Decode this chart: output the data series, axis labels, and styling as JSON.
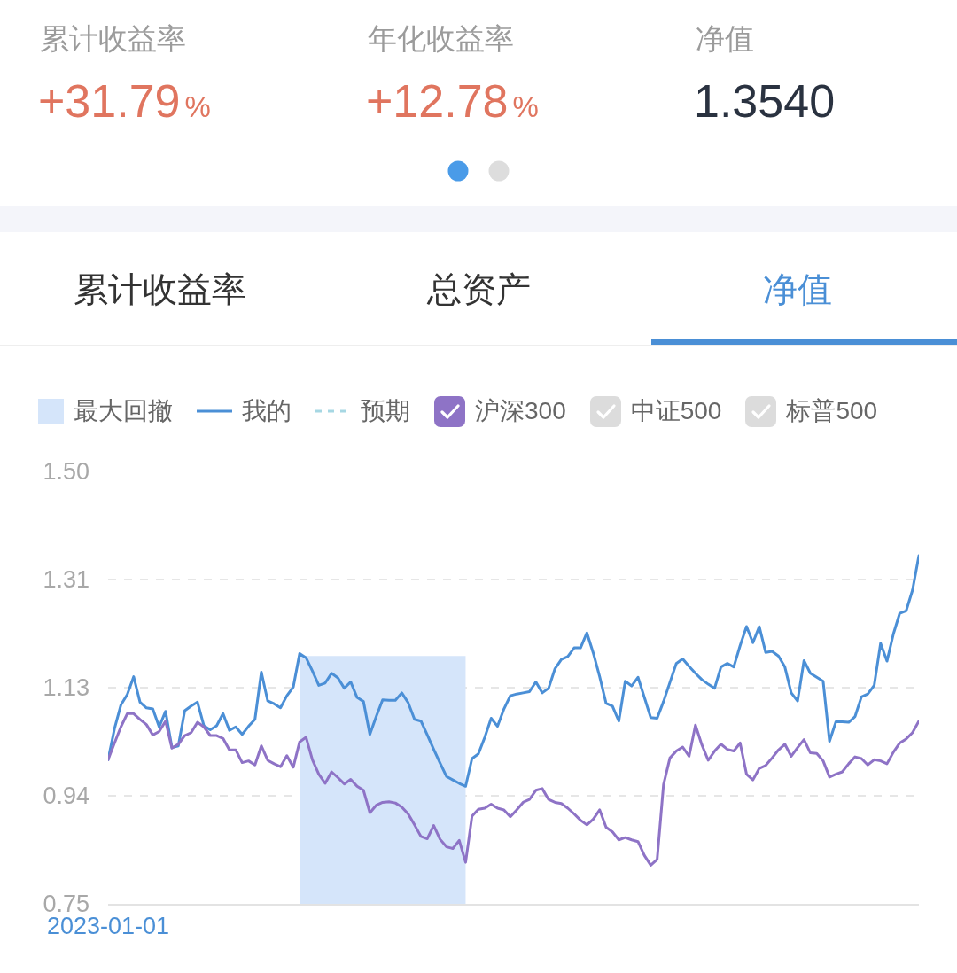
{
  "chart_data": [
    {
      "type": "other",
      "categories": [
        "累计收益率",
        "年化收益率",
        "净值"
      ],
      "value_labels": [
        "+31.79%",
        "+12.78%",
        "1.3540"
      ],
      "colors": [
        "#e0755f",
        "#e0755f",
        "#2a3240"
      ]
    },
    {
      "type": "line",
      "title": "净值",
      "annotations": [
        "累计收益率",
        "总资产"
      ],
      "categories": [
        "2023-01-01",
        null,
        null,
        null,
        null,
        null,
        null,
        null,
        null,
        null,
        null,
        null,
        null,
        null,
        null,
        null,
        null,
        null,
        null,
        null,
        null,
        null,
        null,
        null,
        null,
        null,
        null,
        null,
        null,
        null,
        null,
        null,
        null,
        null,
        null,
        null,
        null,
        null,
        null,
        null,
        null,
        null,
        null,
        null,
        null,
        null,
        null,
        null,
        null,
        null,
        null,
        null,
        null,
        null,
        null,
        null,
        null,
        null,
        null,
        null,
        null,
        null,
        null,
        null,
        null,
        null,
        null,
        null,
        null,
        null,
        null,
        null,
        null,
        null,
        null,
        null,
        null,
        null,
        null,
        null,
        null,
        null,
        null,
        null,
        null,
        null,
        null,
        null,
        null,
        null,
        null,
        null,
        null,
        null,
        null,
        null,
        null,
        null,
        null,
        null,
        null,
        null,
        null,
        null,
        null,
        null,
        null,
        null,
        null,
        null,
        null,
        null,
        null,
        null,
        null,
        null,
        null,
        null,
        null,
        null,
        null,
        null,
        null,
        null,
        null,
        null,
        null,
        null
      ],
      "series": [
        {
          "name": "最大回撤",
          "type": "area",
          "color": "#d5e5fa",
          "values": [
            null,
            null,
            null,
            null,
            null,
            null,
            null,
            null,
            null,
            null,
            null,
            null,
            null,
            null,
            null,
            null,
            null,
            null,
            null,
            null,
            null,
            null,
            null,
            null,
            null,
            null,
            null,
            null,
            null,
            null,
            1.18,
            1.18,
            1.18,
            1.18,
            1.18,
            1.18,
            1.18,
            1.18,
            1.18,
            1.18,
            1.18,
            1.18,
            1.18,
            1.18,
            1.18,
            1.18,
            1.18,
            1.18,
            1.18,
            1.18,
            1.18,
            1.18,
            1.18,
            1.18,
            1.18,
            1.18,
            1.18,
            null,
            null,
            null,
            null,
            null,
            null,
            null,
            null,
            null,
            null,
            null,
            null,
            null,
            null,
            null,
            null,
            null,
            null,
            null,
            null,
            null,
            null,
            null,
            null,
            null,
            null,
            null,
            null,
            null,
            null,
            null,
            null,
            null,
            null,
            null,
            null,
            null,
            null,
            null,
            null,
            null,
            null,
            null,
            null,
            null,
            null,
            null,
            null,
            null,
            null,
            null,
            null,
            null,
            null,
            null,
            null,
            null,
            null,
            null,
            null,
            null,
            null,
            null,
            null,
            null,
            null,
            null,
            null,
            null,
            null,
            null
          ]
        },
        {
          "name": "我的",
          "color": "#4b8fd6",
          "line_style": "solid",
          "values": [
            1.0,
            1.054,
            1.095,
            1.113,
            1.144,
            1.1,
            1.09,
            1.088,
            1.057,
            1.084,
            1.021,
            1.024,
            1.085,
            1.093,
            1.1,
            1.059,
            1.052,
            1.059,
            1.08,
            1.051,
            1.057,
            1.044,
            1.058,
            1.07,
            1.152,
            1.102,
            1.097,
            1.09,
            1.111,
            1.126,
            1.184,
            1.177,
            1.154,
            1.129,
            1.133,
            1.15,
            1.142,
            1.124,
            1.135,
            1.108,
            1.101,
            1.044,
            1.075,
            1.104,
            1.103,
            1.103,
            1.116,
            1.099,
            1.07,
            1.067,
            1.043,
            1.018,
            0.994,
            0.971,
            0.965,
            0.959,
            0.954,
            1.002,
            1.01,
            1.039,
            1.072,
            1.058,
            1.088,
            1.111,
            1.114,
            1.116,
            1.118,
            1.135,
            1.116,
            1.124,
            1.158,
            1.174,
            1.179,
            1.194,
            1.194,
            1.22,
            1.185,
            1.144,
            1.098,
            1.093,
            1.067,
            1.136,
            1.128,
            1.143,
            1.108,
            1.073,
            1.072,
            1.101,
            1.134,
            1.167,
            1.175,
            1.162,
            1.15,
            1.139,
            1.131,
            1.124,
            1.161,
            1.167,
            1.161,
            1.198,
            1.231,
            1.203,
            1.231,
            1.186,
            1.188,
            1.18,
            1.161,
            1.116,
            1.102,
            1.172,
            1.15,
            1.143,
            1.136,
            1.032,
            1.066,
            1.066,
            1.065,
            1.075,
            1.109,
            1.114,
            1.129,
            1.202,
            1.171,
            1.218,
            1.254,
            1.258,
            1.294,
            1.354
          ]
        },
        {
          "name": "预期",
          "color": "#a6d7e3",
          "line_style": "dashed",
          "values": [
            null,
            null,
            null,
            null,
            null,
            null,
            null,
            null,
            null,
            null,
            null,
            null,
            null,
            null,
            null,
            null,
            null,
            null,
            null,
            null,
            null,
            null,
            null,
            null,
            null,
            null,
            null,
            null,
            null,
            null,
            null,
            null,
            null,
            null,
            null,
            null,
            null,
            null,
            null,
            null,
            null,
            null,
            null,
            null,
            null,
            null,
            null,
            null,
            null,
            null,
            null,
            null,
            null,
            null,
            null,
            null,
            null,
            null,
            null,
            null,
            null,
            null,
            null,
            null,
            null,
            null,
            null,
            null,
            null,
            null,
            null,
            null,
            null,
            null,
            null,
            null,
            null,
            null,
            null,
            null,
            null,
            null,
            null,
            null,
            null,
            null,
            null,
            null,
            null,
            null,
            null,
            null,
            null,
            null,
            null,
            null,
            null,
            null,
            null,
            null,
            null,
            null,
            null,
            null,
            null,
            null,
            null,
            null,
            null,
            null,
            null,
            null,
            null,
            null,
            null,
            null,
            null,
            null,
            null,
            null,
            null,
            null,
            null,
            null,
            null,
            null,
            null,
            null
          ]
        },
        {
          "name": "沪深300",
          "color": "#8e73c6",
          "line_style": "solid",
          "values": [
            1.0,
            1.029,
            1.057,
            1.08,
            1.08,
            1.07,
            1.061,
            1.043,
            1.049,
            1.067,
            1.02,
            1.027,
            1.042,
            1.047,
            1.065,
            1.057,
            1.042,
            1.042,
            1.037,
            1.017,
            1.017,
            0.995,
            0.998,
            0.991,
            1.024,
            0.999,
            0.993,
            0.988,
            1.007,
            0.987,
            1.031,
            1.039,
            1.0,
            0.975,
            0.959,
            0.979,
            0.969,
            0.958,
            0.966,
            0.954,
            0.947,
            0.908,
            0.921,
            0.926,
            0.927,
            0.925,
            0.918,
            0.906,
            0.887,
            0.867,
            0.863,
            0.886,
            0.862,
            0.849,
            0.846,
            0.86,
            0.822,
            0.902,
            0.914,
            0.916,
            0.923,
            0.916,
            0.913,
            0.901,
            0.913,
            0.926,
            0.931,
            0.947,
            0.95,
            0.931,
            0.926,
            0.924,
            0.916,
            0.906,
            0.895,
            0.887,
            0.897,
            0.913,
            0.883,
            0.875,
            0.861,
            0.865,
            0.861,
            0.858,
            0.834,
            0.817,
            0.827,
            0.957,
            1.003,
            1.015,
            1.022,
            1.006,
            1.06,
            1.026,
            0.999,
            1.015,
            1.027,
            1.018,
            1.015,
            1.029,
            0.975,
            0.965,
            0.985,
            0.99,
            1.003,
            1.017,
            1.027,
            1.006,
            1.021,
            1.035,
            1.012,
            1.011,
            0.998,
            0.97,
            0.975,
            0.979,
            0.993,
            1.005,
            1.002,
            0.991,
            1.0,
            0.998,
            0.993,
            1.013,
            1.029,
            1.036,
            1.047,
            1.067
          ]
        },
        {
          "name": "中证500",
          "color": "#dcdcdc",
          "line_style": "solid",
          "values": [
            null,
            null,
            null,
            null,
            null,
            null,
            null,
            null,
            null,
            null,
            null,
            null,
            null,
            null,
            null,
            null,
            null,
            null,
            null,
            null,
            null,
            null,
            null,
            null,
            null,
            null,
            null,
            null,
            null,
            null,
            null,
            null,
            null,
            null,
            null,
            null,
            null,
            null,
            null,
            null,
            null,
            null,
            null,
            null,
            null,
            null,
            null,
            null,
            null,
            null,
            null,
            null,
            null,
            null,
            null,
            null,
            null,
            null,
            null,
            null,
            null,
            null,
            null,
            null,
            null,
            null,
            null,
            null,
            null,
            null,
            null,
            null,
            null,
            null,
            null,
            null,
            null,
            null,
            null,
            null,
            null,
            null,
            null,
            null,
            null,
            null,
            null,
            null,
            null,
            null,
            null,
            null,
            null,
            null,
            null,
            null,
            null,
            null,
            null,
            null,
            null,
            null,
            null,
            null,
            null,
            null,
            null,
            null,
            null,
            null,
            null,
            null,
            null,
            null,
            null,
            null,
            null,
            null,
            null,
            null,
            null,
            null,
            null,
            null,
            null,
            null,
            null,
            null
          ]
        },
        {
          "name": "标普500",
          "color": "#dcdcdc",
          "line_style": "solid",
          "values": [
            null,
            null,
            null,
            null,
            null,
            null,
            null,
            null,
            null,
            null,
            null,
            null,
            null,
            null,
            null,
            null,
            null,
            null,
            null,
            null,
            null,
            null,
            null,
            null,
            null,
            null,
            null,
            null,
            null,
            null,
            null,
            null,
            null,
            null,
            null,
            null,
            null,
            null,
            null,
            null,
            null,
            null,
            null,
            null,
            null,
            null,
            null,
            null,
            null,
            null,
            null,
            null,
            null,
            null,
            null,
            null,
            null,
            null,
            null,
            null,
            null,
            null,
            null,
            null,
            null,
            null,
            null,
            null,
            null,
            null,
            null,
            null,
            null,
            null,
            null,
            null,
            null,
            null,
            null,
            null,
            null,
            null,
            null,
            null,
            null,
            null,
            null,
            null,
            null,
            null,
            null,
            null,
            null,
            null,
            null,
            null,
            null,
            null,
            null,
            null,
            null,
            null,
            null,
            null,
            null,
            null,
            null,
            null,
            null,
            null,
            null,
            null,
            null,
            null,
            null,
            null,
            null,
            null,
            null,
            null,
            null,
            null,
            null,
            null,
            null,
            null,
            null,
            null
          ]
        }
      ],
      "ylim": [
        0.75,
        1.5
      ],
      "yticks": [
        0.75,
        {
          "value": 0.9375,
          "label": "0.94"
        },
        {
          "value": 1.125,
          "label": "1.13"
        },
        {
          "value": 1.3125,
          "label": "1.31"
        },
        {
          "value": 1.5,
          "label": "1.50"
        }
      ],
      "grid": "y",
      "legend": "top"
    }
  ]
}
